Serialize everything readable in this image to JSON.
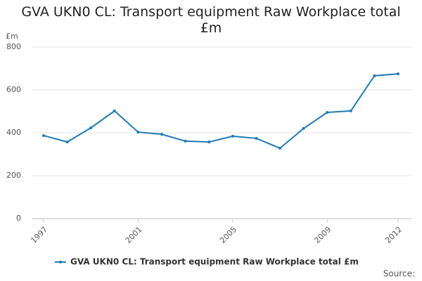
{
  "chart_data": {
    "type": "line",
    "title": "GVA UKN0 CL: Transport equipment Raw Workplace total £m",
    "y_label": "£m",
    "source": "Source:",
    "x": [
      1997,
      1998,
      1999,
      2000,
      2001,
      2002,
      2003,
      2004,
      2005,
      2006,
      2007,
      2008,
      2009,
      2010,
      2011,
      2012
    ],
    "xlim": [
      1997,
      2012
    ],
    "xticks": [
      1997,
      2001,
      2005,
      2009,
      2012
    ],
    "ylim": [
      0,
      800
    ],
    "yticks": [
      0,
      200,
      400,
      600,
      800
    ],
    "grid": true,
    "legend": "bottom",
    "series": [
      {
        "name": "GVA UKN0 CL: Transport equipment Raw Workplace total £m",
        "color": "#1f7bb6",
        "values": [
          387,
          357,
          423,
          502,
          403,
          393,
          361,
          357,
          384,
          374,
          328,
          420,
          495,
          502,
          666,
          675
        ]
      }
    ]
  }
}
